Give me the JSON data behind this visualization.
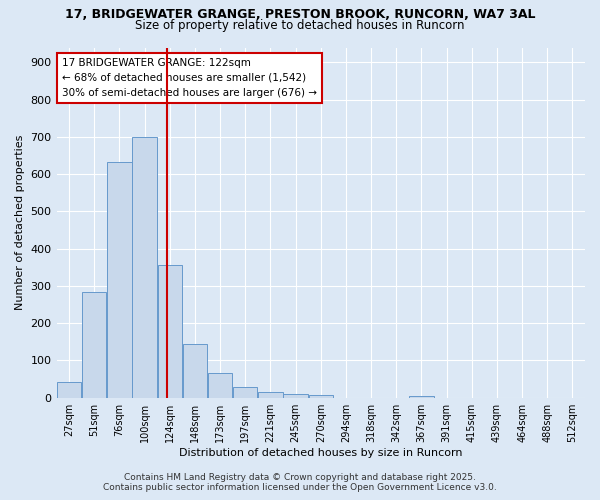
{
  "title1": "17, BRIDGEWATER GRANGE, PRESTON BROOK, RUNCORN, WA7 3AL",
  "title2": "Size of property relative to detached houses in Runcorn",
  "xlabel": "Distribution of detached houses by size in Runcorn",
  "ylabel": "Number of detached properties",
  "bar_color": "#c8d8eb",
  "bar_edge_color": "#6699cc",
  "categories": [
    "27sqm",
    "51sqm",
    "76sqm",
    "100sqm",
    "124sqm",
    "148sqm",
    "173sqm",
    "197sqm",
    "221sqm",
    "245sqm",
    "270sqm",
    "294sqm",
    "318sqm",
    "342sqm",
    "367sqm",
    "391sqm",
    "415sqm",
    "439sqm",
    "464sqm",
    "488sqm",
    "512sqm"
  ],
  "values": [
    42,
    283,
    634,
    700,
    355,
    145,
    65,
    30,
    15,
    10,
    7,
    0,
    0,
    0,
    5,
    0,
    0,
    0,
    0,
    0,
    0
  ],
  "property_label": "17 BRIDGEWATER GRANGE: 122sqm",
  "annotation_line1": "← 68% of detached houses are smaller (1,542)",
  "annotation_line2": "30% of semi-detached houses are larger (676) →",
  "vline_color": "#cc0000",
  "vline_x": 3.88,
  "ylim": [
    0,
    940
  ],
  "yticks": [
    0,
    100,
    200,
    300,
    400,
    500,
    600,
    700,
    800,
    900
  ],
  "background_color": "#dce8f5",
  "grid_color": "#ffffff",
  "footer1": "Contains HM Land Registry data © Crown copyright and database right 2025.",
  "footer2": "Contains public sector information licensed under the Open Government Licence v3.0."
}
